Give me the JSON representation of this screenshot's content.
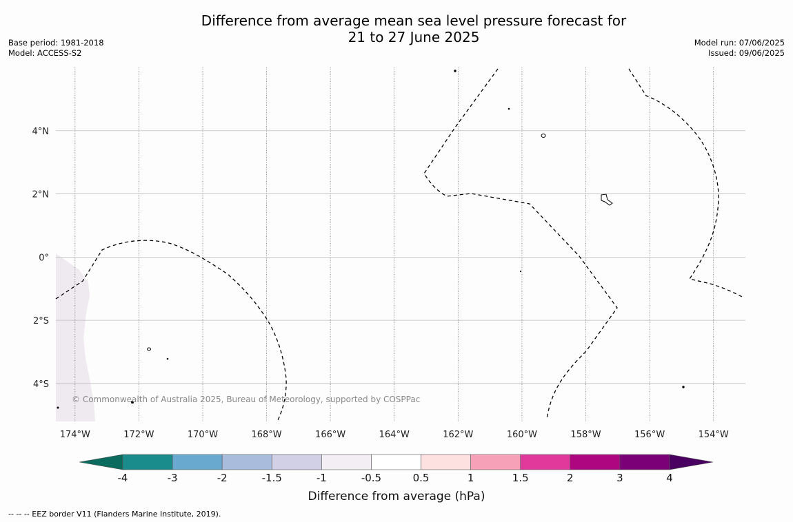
{
  "title_line1": "Difference from average mean sea level pressure forecast for",
  "title_line2": "21 to 27 June 2025",
  "meta_left": {
    "base_period": "Base period: 1981-2018",
    "model": "Model: ACCESS-S2"
  },
  "meta_right": {
    "model_run": "Model run: 07/06/2025",
    "issued": "Issued: 09/06/2025"
  },
  "copyright": "© Commonwealth of Australia 2025, Bureau of Meteorology, supported by COSPPac",
  "footer_note": "--  --  -- EEZ border V11 (Flanders Marine Institute, 2019).",
  "map": {
    "lon_range": [
      -174.6,
      -153.0
    ],
    "lat_range": [
      -5.2,
      6.0
    ],
    "lon_ticks": [
      {
        "value": -174,
        "label": "174°W"
      },
      {
        "value": -172,
        "label": "172°W"
      },
      {
        "value": -170,
        "label": "170°W"
      },
      {
        "value": -168,
        "label": "168°W"
      },
      {
        "value": -166,
        "label": "166°W"
      },
      {
        "value": -164,
        "label": "164°W"
      },
      {
        "value": -162,
        "label": "162°W"
      },
      {
        "value": -160,
        "label": "160°W"
      },
      {
        "value": -158,
        "label": "158°W"
      },
      {
        "value": -156,
        "label": "156°W"
      },
      {
        "value": -154,
        "label": "154°W"
      }
    ],
    "lat_ticks": [
      {
        "value": 4,
        "label": "4°N"
      },
      {
        "value": 2,
        "label": "2°N"
      },
      {
        "value": 0,
        "label": "0°"
      },
      {
        "value": -2,
        "label": "2°S"
      },
      {
        "value": -4,
        "label": "4°S"
      }
    ],
    "shading_color": "#efe9f0",
    "eez_color": "#000000"
  },
  "colorbar": {
    "title": "Difference from average (hPa)",
    "min_color": "#0b6b5e",
    "max_color": "#4a0060",
    "bins": [
      {
        "color": "#1a8c8c"
      },
      {
        "color": "#69a9d0"
      },
      {
        "color": "#a9bcdb"
      },
      {
        "color": "#d2d0e6"
      },
      {
        "color": "#f2eef4"
      },
      {
        "color": "#ffffff"
      },
      {
        "color": "#fde0e0"
      },
      {
        "color": "#f7a1b9"
      },
      {
        "color": "#e0399b"
      },
      {
        "color": "#ae0581"
      },
      {
        "color": "#7b0077"
      }
    ],
    "labels": [
      "-4",
      "-3",
      "-2",
      "-1.5",
      "-1",
      "-0.5",
      "0.5",
      "1",
      "1.5",
      "2",
      "3",
      "4"
    ]
  }
}
